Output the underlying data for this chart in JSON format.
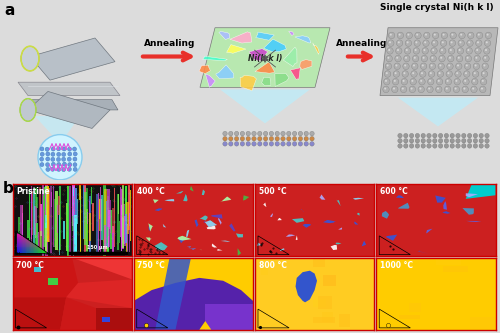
{
  "fig_width": 5.0,
  "fig_height": 3.33,
  "dpi": 100,
  "bg_color": "#dcdcdc",
  "label_a": "a",
  "label_b": "b",
  "arrow_color": "#e8302a",
  "annealing_text": "Annealing",
  "title_text": "Single crystal Ni(h k l)",
  "ni_label": "Ni(h k l)",
  "panel_b_labels": [
    "Pristine",
    "400 °C",
    "500 °C",
    "600 °C",
    "700 °C",
    "750 °C",
    "800 °C",
    "1000 °C"
  ],
  "scale_bar_text": "150 μm",
  "grain_colors": [
    "#cc88ff",
    "#88ccff",
    "#ffcc44",
    "#ff8844",
    "#88dd88",
    "#ff4488",
    "#44ffcc",
    "#ffff55",
    "#cc44cc",
    "#44ccff",
    "#99eeaa",
    "#ff9966",
    "#aabbff",
    "#ffaacc",
    "#55ccff"
  ],
  "pristine_streak_colors": [
    "#cc44cc",
    "#44dd44",
    "#ff5555",
    "#5599ff",
    "#ffcc00",
    "#ff55ff",
    "#55ffff",
    "#99ff55",
    "#dd44dd",
    "#44ff44"
  ],
  "temp_red_bg": "#cc2020",
  "temp750_purple": "#5522aa",
  "temp750_yellow": "#ffcc00",
  "temp750_blue": "#3355cc",
  "temp800_yellow": "#ffcc22",
  "temp1000_yellow": "#ffcc00",
  "blue_grain": "#3355cc",
  "green_grain": "#44cc44",
  "cyan_grain": "#00bbcc",
  "white_grain": "#ffffff",
  "panel_b_border": "#cc0000"
}
